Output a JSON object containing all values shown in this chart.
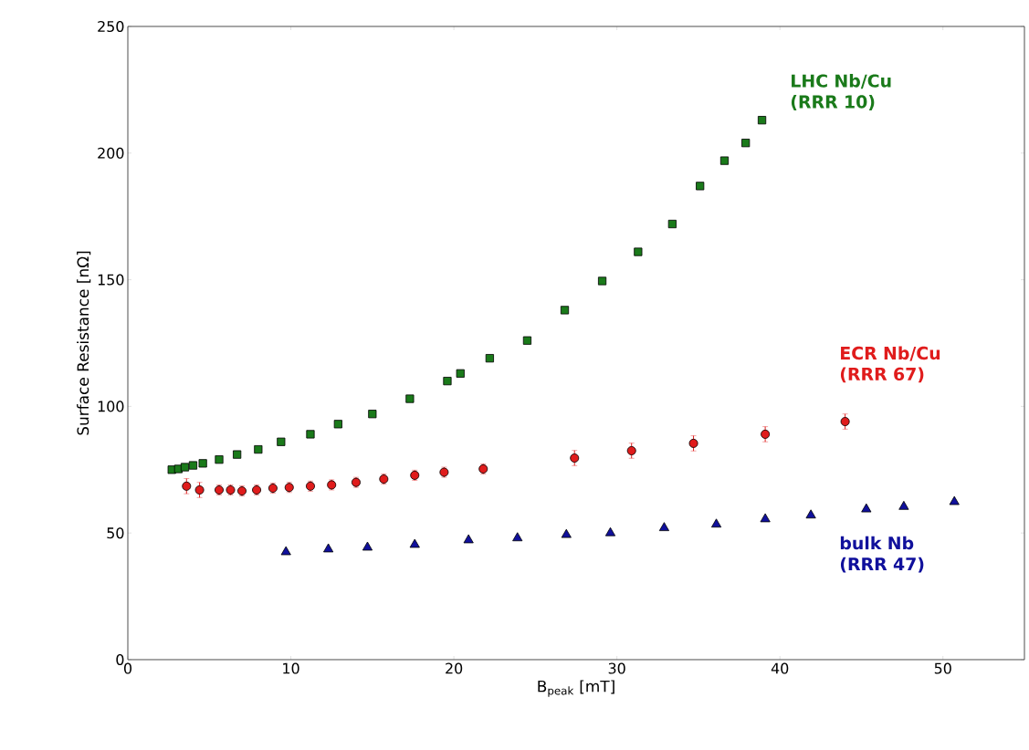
{
  "chart_data": {
    "type": "scatter",
    "xlabel": "B$_{peak}$ [mT]",
    "ylabel": "Surface Resistance [nΩ]",
    "xlim": [
      0,
      55
    ],
    "ylim": [
      0,
      250
    ],
    "xticks": [
      0,
      10,
      20,
      30,
      40,
      50
    ],
    "yticks": [
      0,
      50,
      100,
      150,
      200,
      250
    ],
    "series": [
      {
        "name": "LHC Nb/Cu (RRR 10)",
        "color": "#1a7a1a",
        "marker": "square",
        "x": [
          2.7,
          3.1,
          3.5,
          4.0,
          4.6,
          5.6,
          6.7,
          8.0,
          9.4,
          11.2,
          12.9,
          15.0,
          17.3,
          19.6,
          20.4,
          22.2,
          24.5,
          26.8,
          29.1,
          31.3,
          33.4,
          35.1,
          36.6,
          37.9,
          38.9
        ],
        "values": [
          75,
          75.3,
          76,
          76.7,
          77.5,
          79,
          81,
          83,
          86,
          89,
          93,
          97,
          103,
          110,
          113,
          119,
          126,
          138,
          149.5,
          161,
          172,
          187,
          197,
          204,
          213
        ]
      },
      {
        "name": "ECR Nb/Cu (RRR 67)",
        "color": "#e01c1c",
        "marker": "circle",
        "x": [
          3.6,
          4.4,
          5.6,
          6.3,
          7.0,
          7.9,
          8.9,
          9.9,
          11.2,
          12.5,
          14.0,
          15.7,
          17.6,
          19.4,
          21.8,
          27.4,
          30.9,
          34.7,
          39.1,
          44.0
        ],
        "values": [
          68.5,
          67,
          67,
          67,
          66.6,
          67,
          67.7,
          68,
          68.5,
          69,
          70,
          71.3,
          72.8,
          74,
          75.3,
          79.6,
          82.5,
          85.4,
          89,
          94
        ],
        "errors": [
          3,
          3,
          2,
          2,
          2,
          2,
          2,
          2,
          2,
          2,
          2,
          2,
          2,
          2,
          2,
          3,
          3,
          3,
          3,
          3
        ]
      },
      {
        "name": "bulk Nb (RRR 47)",
        "color": "#10109c",
        "marker": "triangle",
        "x": [
          9.7,
          12.3,
          14.7,
          17.6,
          20.9,
          23.9,
          26.9,
          29.6,
          32.9,
          36.1,
          39.1,
          41.9,
          45.3,
          47.6,
          50.7
        ],
        "values": [
          42.5,
          43.6,
          44.3,
          45.4,
          47.2,
          48,
          49.3,
          50,
          52,
          53.4,
          55.5,
          57,
          59.4,
          60.4,
          62.3
        ]
      }
    ]
  }
}
